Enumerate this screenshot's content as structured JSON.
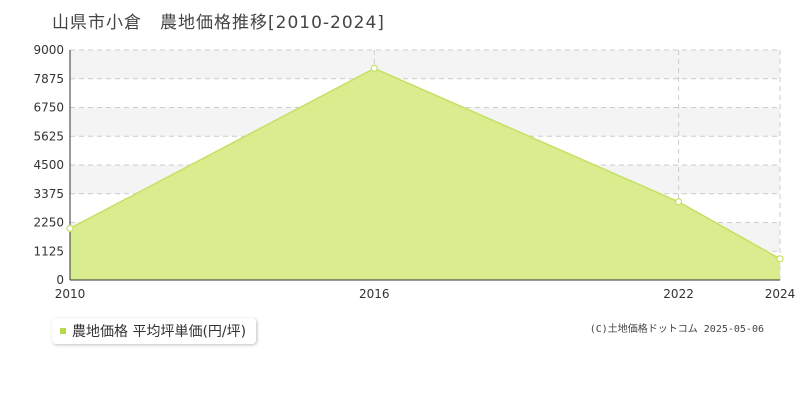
{
  "title": "山県市小倉　農地価格推移[2010-2024]",
  "copyright": "(C)土地価格ドットコム 2025-05-06",
  "legend": {
    "label": "農地価格 平均坪単価(円/坪)"
  },
  "colors": {
    "fill": "#d9ec8e",
    "line": "#c4e163",
    "grid": "#cccccc",
    "band": "#f4f4f4",
    "axis": "#333333",
    "legend_swatch": "#b5d94b"
  },
  "chart_data": {
    "type": "area",
    "x": [
      2010,
      2016,
      2022,
      2024
    ],
    "series": [
      {
        "name": "農地価格 平均坪単価(円/坪)",
        "values": [
          2020,
          8280,
          3060,
          830
        ]
      }
    ],
    "xlabel": "",
    "ylabel": "",
    "xticks": [
      "2010",
      "2016",
      "2022",
      "2024"
    ],
    "yticks": [
      "0",
      "1125",
      "2250",
      "3375",
      "4500",
      "5625",
      "6750",
      "7875",
      "9000"
    ],
    "xlim": [
      2010,
      2024
    ],
    "ylim": [
      0,
      9000
    ],
    "grid": true,
    "legend_position": "bottom-left"
  }
}
